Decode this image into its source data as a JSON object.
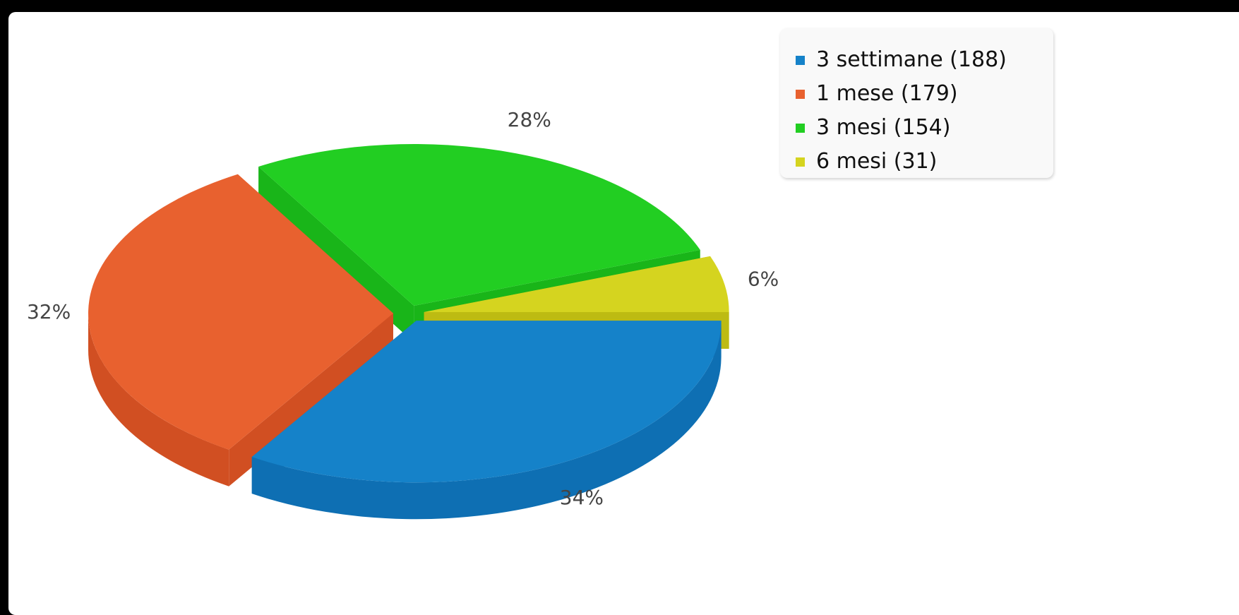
{
  "chart_data": {
    "type": "pie",
    "style": "3d",
    "legend_position": "top-right",
    "title": "",
    "slices": [
      {
        "label": "3 settimane",
        "value": 188,
        "percent_label": "34%",
        "color": "#1582c9",
        "side_color": "#0e6fb3"
      },
      {
        "label": "1 mese",
        "value": 179,
        "percent_label": "32%",
        "color": "#e8612f",
        "side_color": "#d14f22"
      },
      {
        "label": "3 mesi",
        "value": 154,
        "percent_label": "28%",
        "color": "#22ce22",
        "side_color": "#19b519"
      },
      {
        "label": "6 mesi",
        "value": 31,
        "percent_label": "6%",
        "color": "#d5d41f",
        "side_color": "#bdbb12"
      }
    ],
    "legend": [
      {
        "text": "3 settimane (188)",
        "color": "#1582c9"
      },
      {
        "text": "1 mese (179)",
        "color": "#e8612f"
      },
      {
        "text": "3 mesi (154)",
        "color": "#22ce22"
      },
      {
        "text": "6 mesi (31)",
        "color": "#d5d41f"
      }
    ]
  }
}
